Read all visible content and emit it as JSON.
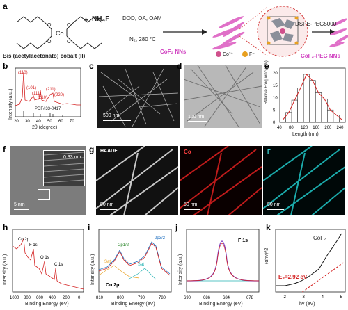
{
  "panels": {
    "a": "a",
    "b": "b",
    "c": "c",
    "d": "d",
    "e": "e",
    "f": "f",
    "g": "g",
    "h": "h",
    "i": "i",
    "j": "j",
    "k": "k"
  },
  "scheme": {
    "precursor_name": "Bis (acetylacetonato) cobalt (II)",
    "plus1": "+",
    "reagent": "NH₄F",
    "conditions_top": "DOD, OA, OAM",
    "conditions_bottom": "N₂, 280 °C",
    "product1": "CoF₂ NNs",
    "legend_co": "Co²⁺",
    "legend_f": "F⁻",
    "reagent2": "DSPE-PEG5000",
    "product2": "CoF₂-PEG NNs",
    "colors": {
      "nanoneedle": "#e070c8",
      "co_ion": "#d0508c",
      "f_ion": "#e8a020",
      "product_text": "#d040c0"
    }
  },
  "panel_b": {
    "peaks": [
      "(110)",
      "(101)",
      "(111)",
      "(210)",
      "(211)",
      "(220)"
    ],
    "reference": "PDF#33-0417",
    "xlabel": "2θ (degree)",
    "xticks": [
      "20",
      "30",
      "40",
      "50",
      "60",
      "70"
    ]
  },
  "panel_c": {
    "scale": "500 nm"
  },
  "panel_d": {
    "scale": "100 nm"
  },
  "panel_e": {
    "ylabel": "Relative Frequency (%)",
    "xlabel": "Length (nm)",
    "yticks": [
      "0",
      "5",
      "10",
      "15",
      "20"
    ],
    "xticks": [
      "40",
      "80",
      "120",
      "160",
      "200",
      "240"
    ]
  },
  "panel_f": {
    "inset_spacing": "0.33 nm",
    "scale": "5 nm"
  },
  "panel_g": {
    "haadf": "HAADF",
    "co": "Co",
    "f": "F",
    "scale1": "50 nm",
    "scale2": "50 nm",
    "scale3": "50 nm"
  },
  "panel_h": {
    "labels": [
      "Co 2p",
      "F 1s",
      "O 1s",
      "C 1s"
    ],
    "ylabel": "Intensity (a.u.)",
    "xlabel": "Binding Energy (eV)",
    "xticks": [
      "1000",
      "800",
      "600",
      "400",
      "200",
      "0"
    ]
  },
  "panel_i": {
    "labels": [
      "2p₁/₂",
      "2p₃/₂",
      "Sat",
      "Sat"
    ],
    "title": "Co 2p",
    "ylabel": "Intensity (a.u.)",
    "xlabel": "Binding Energy (eV)",
    "xticks": [
      "810",
      "800",
      "790",
      "780"
    ]
  },
  "panel_j": {
    "title": "F 1s",
    "ylabel": "Intensity (a.u.)",
    "xlabel": "Binding Energy (eV)",
    "xticks": [
      "690",
      "688",
      "686",
      "684",
      "682",
      "680",
      "678"
    ]
  },
  "panel_k": {
    "legend": "CoF₂",
    "eg": "E₉=2.92 eV",
    "ylabel": "(αhv)^2",
    "xlabel": "hv (eV)",
    "xticks": [
      "2",
      "3",
      "4",
      "5"
    ]
  },
  "chart_data": [
    {
      "type": "bar",
      "panel": "e",
      "categories": [
        "40-60",
        "60-80",
        "80-100",
        "100-120",
        "120-140",
        "140-160",
        "160-180",
        "180-200",
        "200-220",
        "220-240",
        "240-260"
      ],
      "values": [
        1,
        4,
        9,
        14,
        19.5,
        17,
        12,
        9.5,
        5,
        3,
        1
      ],
      "xlabel": "Length (nm)",
      "ylabel": "Relative Frequency (%)",
      "ylim": [
        0,
        22
      ],
      "xlim": [
        40,
        260
      ]
    },
    {
      "type": "line",
      "panel": "k",
      "series": [
        {
          "name": "CoF₂",
          "x": [
            1.5,
            2,
            2.5,
            2.8,
            3.0,
            3.2,
            3.5,
            3.8,
            4.0,
            4.2,
            4.5,
            4.8,
            5.0
          ],
          "y": [
            3,
            3,
            4,
            5,
            6,
            7,
            9,
            11,
            14,
            17,
            21,
            25,
            28
          ]
        }
      ],
      "xlabel": "hv (eV)",
      "ylabel": "(αhv)^2",
      "xlim": [
        1.5,
        5.2
      ]
    }
  ]
}
